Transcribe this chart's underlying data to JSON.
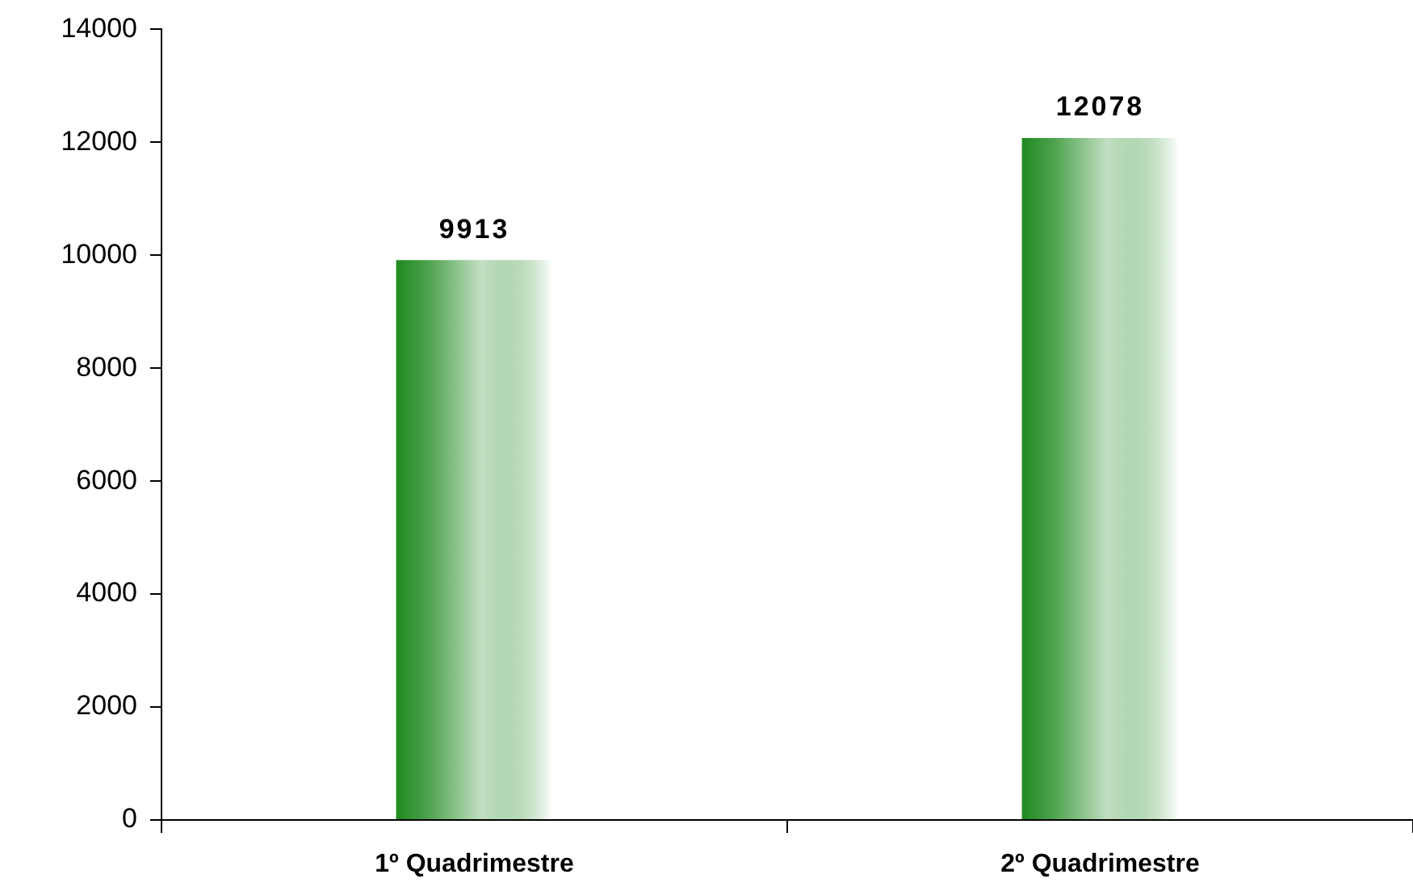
{
  "chart_data": {
    "type": "bar",
    "categories": [
      "1º Quadrimestre",
      "2º Quadrimestre"
    ],
    "values": [
      9913,
      12078
    ],
    "color": "#1f8a1f",
    "ylim": [
      0,
      14000
    ],
    "yticks": [
      0,
      2000,
      4000,
      6000,
      8000,
      10000,
      12000,
      14000
    ],
    "data_labels": true
  }
}
